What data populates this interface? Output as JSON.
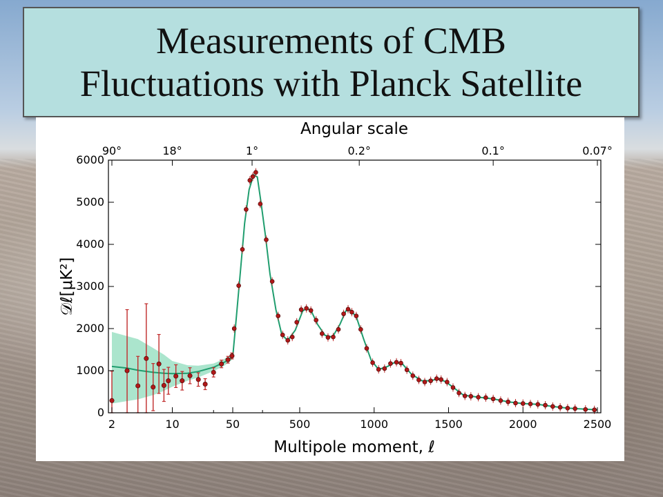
{
  "slide": {
    "title_line1": "Measurements of CMB",
    "title_line2": "Fluctuations with Planck Satellite"
  },
  "chart_data": {
    "type": "scatter",
    "xlabel": "Multipole moment, ℓ",
    "ylabel": "𝒟ℓ[μK²]",
    "top_xlabel": "Angular scale",
    "x_scale": "log for ℓ 2–50, linear for ℓ 50–2500",
    "ylim": [
      0,
      6000
    ],
    "x_ticks": [
      "2",
      "10",
      "50",
      "500",
      "1000",
      "1500",
      "2000",
      "2500"
    ],
    "x_tick_values": [
      2,
      10,
      50,
      500,
      1000,
      1500,
      2000,
      2500
    ],
    "extra_minor_ticks": [
      30,
      250
    ],
    "y_ticks": [
      "0",
      "1000",
      "2000",
      "3000",
      "4000",
      "5000",
      "6000"
    ],
    "y_tick_values": [
      0,
      1000,
      2000,
      3000,
      4000,
      5000,
      6000
    ],
    "top_ticks": [
      {
        "label": "90°",
        "ell": 2
      },
      {
        "label": "18°",
        "ell": 10
      },
      {
        "label": "1°",
        "ell": 180
      },
      {
        "label": "0.2°",
        "ell": 900
      },
      {
        "label": "0.1°",
        "ell": 1800
      },
      {
        "label": "0.07°",
        "ell": 2500
      }
    ],
    "grid": false,
    "colors": {
      "points": "#b01818",
      "error_bars": "#c02a2a",
      "model": "#1f9d6e",
      "band": "#8fdcbc"
    },
    "low_ell_points": [
      {
        "ell": 2,
        "d": 290,
        "err": 700
      },
      {
        "ell": 3,
        "d": 1000,
        "err": 1450
      },
      {
        "ell": 4,
        "d": 640,
        "err": 700
      },
      {
        "ell": 5,
        "d": 1290,
        "err": 1300
      },
      {
        "ell": 6,
        "d": 610,
        "err": 560
      },
      {
        "ell": 7,
        "d": 1160,
        "err": 700
      },
      {
        "ell": 8,
        "d": 650,
        "err": 380
      },
      {
        "ell": 9,
        "d": 760,
        "err": 320
      },
      {
        "ell": 11,
        "d": 870,
        "err": 270
      },
      {
        "ell": 13,
        "d": 760,
        "err": 220
      },
      {
        "ell": 16,
        "d": 880,
        "err": 190
      },
      {
        "ell": 20,
        "d": 790,
        "err": 160
      },
      {
        "ell": 24,
        "d": 680,
        "err": 130
      },
      {
        "ell": 30,
        "d": 960,
        "err": 110
      },
      {
        "ell": 37,
        "d": 1160,
        "err": 90
      },
      {
        "ell": 44,
        "d": 1260,
        "err": 80
      },
      {
        "ell": 49,
        "d": 1350,
        "err": 70
      }
    ],
    "high_ell_points": [
      [
        60,
        2000
      ],
      [
        90,
        3020
      ],
      [
        115,
        3880
      ],
      [
        140,
        4830
      ],
      [
        165,
        5520
      ],
      [
        185,
        5610
      ],
      [
        205,
        5710
      ],
      [
        235,
        4960
      ],
      [
        275,
        4110
      ],
      [
        315,
        3120
      ],
      [
        355,
        2300
      ],
      [
        385,
        1850
      ],
      [
        420,
        1720
      ],
      [
        450,
        1800
      ],
      [
        480,
        2150
      ],
      [
        510,
        2450
      ],
      [
        545,
        2480
      ],
      [
        575,
        2430
      ],
      [
        610,
        2200
      ],
      [
        650,
        1880
      ],
      [
        690,
        1790
      ],
      [
        725,
        1800
      ],
      [
        760,
        1980
      ],
      [
        795,
        2350
      ],
      [
        825,
        2460
      ],
      [
        850,
        2390
      ],
      [
        880,
        2300
      ],
      [
        910,
        1980
      ],
      [
        950,
        1530
      ],
      [
        990,
        1190
      ],
      [
        1030,
        1030
      ],
      [
        1070,
        1050
      ],
      [
        1110,
        1170
      ],
      [
        1150,
        1200
      ],
      [
        1180,
        1180
      ],
      [
        1220,
        1020
      ],
      [
        1260,
        880
      ],
      [
        1300,
        780
      ],
      [
        1340,
        730
      ],
      [
        1380,
        760
      ],
      [
        1420,
        810
      ],
      [
        1450,
        790
      ],
      [
        1490,
        730
      ],
      [
        1530,
        600
      ],
      [
        1570,
        470
      ],
      [
        1610,
        400
      ],
      [
        1650,
        390
      ],
      [
        1700,
        370
      ],
      [
        1750,
        360
      ],
      [
        1800,
        330
      ],
      [
        1850,
        290
      ],
      [
        1900,
        260
      ],
      [
        1950,
        230
      ],
      [
        2000,
        220
      ],
      [
        2050,
        210
      ],
      [
        2100,
        200
      ],
      [
        2150,
        180
      ],
      [
        2200,
        150
      ],
      [
        2250,
        130
      ],
      [
        2300,
        110
      ],
      [
        2350,
        100
      ],
      [
        2420,
        80
      ],
      [
        2480,
        70
      ]
    ],
    "model_curve": [
      [
        2,
        1100
      ],
      [
        3,
        1060
      ],
      [
        4,
        1010
      ],
      [
        6,
        960
      ],
      [
        8,
        940
      ],
      [
        10,
        930
      ],
      [
        15,
        940
      ],
      [
        20,
        980
      ],
      [
        30,
        1080
      ],
      [
        40,
        1200
      ],
      [
        50,
        1330
      ],
      [
        70,
        2100
      ],
      [
        100,
        3300
      ],
      [
        130,
        4500
      ],
      [
        160,
        5300
      ],
      [
        190,
        5650
      ],
      [
        215,
        5600
      ],
      [
        240,
        5000
      ],
      [
        270,
        4200
      ],
      [
        300,
        3300
      ],
      [
        340,
        2450
      ],
      [
        380,
        1850
      ],
      [
        420,
        1720
      ],
      [
        470,
        1960
      ],
      [
        520,
        2420
      ],
      [
        550,
        2480
      ],
      [
        580,
        2400
      ],
      [
        620,
        2100
      ],
      [
        670,
        1840
      ],
      [
        720,
        1800
      ],
      [
        770,
        2100
      ],
      [
        810,
        2420
      ],
      [
        840,
        2440
      ],
      [
        880,
        2280
      ],
      [
        930,
        1750
      ],
      [
        980,
        1250
      ],
      [
        1030,
        1030
      ],
      [
        1090,
        1100
      ],
      [
        1140,
        1200
      ],
      [
        1190,
        1160
      ],
      [
        1250,
        920
      ],
      [
        1320,
        760
      ],
      [
        1380,
        760
      ],
      [
        1430,
        810
      ],
      [
        1480,
        740
      ],
      [
        1540,
        580
      ],
      [
        1600,
        420
      ],
      [
        1700,
        370
      ],
      [
        1800,
        330
      ],
      [
        1900,
        260
      ],
      [
        2000,
        220
      ],
      [
        2100,
        200
      ],
      [
        2200,
        150
      ],
      [
        2300,
        110
      ],
      [
        2400,
        90
      ],
      [
        2500,
        70
      ]
    ],
    "cosmic_variance_band": [
      [
        2,
        1920,
        220
      ],
      [
        4,
        1750,
        320
      ],
      [
        6,
        1540,
        420
      ],
      [
        8,
        1380,
        520
      ],
      [
        10,
        1230,
        620
      ],
      [
        15,
        1130,
        760
      ],
      [
        20,
        1120,
        840
      ],
      [
        30,
        1170,
        990
      ],
      [
        40,
        1280,
        1120
      ],
      [
        50,
        1390,
        1270
      ]
    ]
  }
}
